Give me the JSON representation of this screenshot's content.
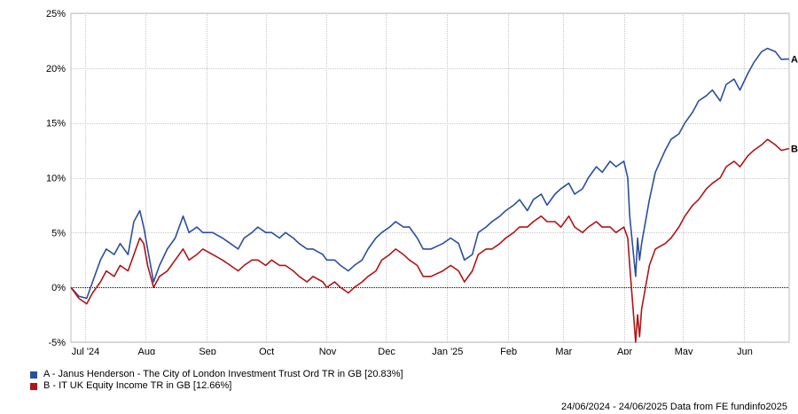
{
  "chart_data": {
    "type": "line",
    "x_range": [
      "2024-06-24",
      "2025-06-24"
    ],
    "ylim": [
      -5,
      25
    ],
    "y_ticks": [
      -5,
      0,
      5,
      10,
      15,
      20,
      25
    ],
    "y_tick_labels": [
      "-5%",
      "0%",
      "5%",
      "10%",
      "15%",
      "20%",
      "25%"
    ],
    "x_tick_labels": [
      {
        "date": "2024-07-01",
        "label": "Jul '24"
      },
      {
        "date": "2024-08-01",
        "label": "Aug"
      },
      {
        "date": "2024-09-01",
        "label": "Sep"
      },
      {
        "date": "2024-10-01",
        "label": "Oct"
      },
      {
        "date": "2024-11-01",
        "label": "Nov"
      },
      {
        "date": "2024-12-01",
        "label": "Dec"
      },
      {
        "date": "2025-01-01",
        "label": "Jan '25"
      },
      {
        "date": "2025-02-01",
        "label": "Feb"
      },
      {
        "date": "2025-03-01",
        "label": "Mar"
      },
      {
        "date": "2025-04-01",
        "label": "Apr"
      },
      {
        "date": "2025-05-01",
        "label": "May"
      },
      {
        "date": "2025-06-01",
        "label": "Jun"
      }
    ],
    "grid": true,
    "legend_position": "bottom-left",
    "series": [
      {
        "id": "A",
        "end_label": "A",
        "name": "A - Janus Henderson - The City of London Investment Trust Ord TR in GB [20.83%]",
        "color": "#2b4f9e",
        "points": [
          [
            "2024-06-24",
            0.0
          ],
          [
            "2024-06-28",
            -0.8
          ],
          [
            "2024-07-02",
            -1.0
          ],
          [
            "2024-07-05",
            0.5
          ],
          [
            "2024-07-09",
            2.5
          ],
          [
            "2024-07-12",
            3.5
          ],
          [
            "2024-07-16",
            3.0
          ],
          [
            "2024-07-19",
            4.0
          ],
          [
            "2024-07-23",
            3.0
          ],
          [
            "2024-07-26",
            6.0
          ],
          [
            "2024-07-29",
            7.0
          ],
          [
            "2024-07-31",
            5.5
          ],
          [
            "2024-08-02",
            3.5
          ],
          [
            "2024-08-05",
            0.5
          ],
          [
            "2024-08-08",
            2.0
          ],
          [
            "2024-08-12",
            3.5
          ],
          [
            "2024-08-16",
            4.5
          ],
          [
            "2024-08-20",
            6.5
          ],
          [
            "2024-08-23",
            5.0
          ],
          [
            "2024-08-27",
            5.5
          ],
          [
            "2024-08-30",
            5.0
          ],
          [
            "2024-09-04",
            5.0
          ],
          [
            "2024-09-09",
            4.5
          ],
          [
            "2024-09-13",
            4.0
          ],
          [
            "2024-09-17",
            3.5
          ],
          [
            "2024-09-20",
            4.5
          ],
          [
            "2024-09-24",
            5.0
          ],
          [
            "2024-09-27",
            5.5
          ],
          [
            "2024-10-01",
            5.0
          ],
          [
            "2024-10-04",
            5.0
          ],
          [
            "2024-10-08",
            4.5
          ],
          [
            "2024-10-11",
            5.0
          ],
          [
            "2024-10-15",
            4.5
          ],
          [
            "2024-10-18",
            4.0
          ],
          [
            "2024-10-22",
            3.5
          ],
          [
            "2024-10-25",
            3.5
          ],
          [
            "2024-10-30",
            3.0
          ],
          [
            "2024-11-01",
            2.5
          ],
          [
            "2024-11-05",
            2.5
          ],
          [
            "2024-11-08",
            2.0
          ],
          [
            "2024-11-12",
            1.5
          ],
          [
            "2024-11-15",
            2.0
          ],
          [
            "2024-11-19",
            2.5
          ],
          [
            "2024-11-22",
            3.5
          ],
          [
            "2024-11-26",
            4.5
          ],
          [
            "2024-11-29",
            5.0
          ],
          [
            "2024-12-03",
            5.5
          ],
          [
            "2024-12-06",
            6.0
          ],
          [
            "2024-12-10",
            5.5
          ],
          [
            "2024-12-13",
            5.5
          ],
          [
            "2024-12-17",
            4.5
          ],
          [
            "2024-12-20",
            3.5
          ],
          [
            "2024-12-24",
            3.5
          ],
          [
            "2024-12-30",
            4.0
          ],
          [
            "2025-01-03",
            4.5
          ],
          [
            "2025-01-07",
            4.0
          ],
          [
            "2025-01-10",
            2.5
          ],
          [
            "2025-01-14",
            3.0
          ],
          [
            "2025-01-17",
            5.0
          ],
          [
            "2025-01-21",
            5.5
          ],
          [
            "2025-01-24",
            6.0
          ],
          [
            "2025-01-28",
            6.5
          ],
          [
            "2025-01-31",
            7.0
          ],
          [
            "2025-02-04",
            7.5
          ],
          [
            "2025-02-07",
            8.0
          ],
          [
            "2025-02-11",
            7.0
          ],
          [
            "2025-02-14",
            8.0
          ],
          [
            "2025-02-18",
            8.5
          ],
          [
            "2025-02-21",
            7.5
          ],
          [
            "2025-02-25",
            8.5
          ],
          [
            "2025-02-28",
            9.0
          ],
          [
            "2025-03-04",
            9.5
          ],
          [
            "2025-03-07",
            8.5
          ],
          [
            "2025-03-11",
            9.0
          ],
          [
            "2025-03-14",
            10.0
          ],
          [
            "2025-03-18",
            11.0
          ],
          [
            "2025-03-21",
            10.5
          ],
          [
            "2025-03-25",
            11.5
          ],
          [
            "2025-03-28",
            11.0
          ],
          [
            "2025-04-01",
            11.5
          ],
          [
            "2025-04-03",
            10.0
          ],
          [
            "2025-04-04",
            6.5
          ],
          [
            "2025-04-07",
            1.0
          ],
          [
            "2025-04-08",
            4.5
          ],
          [
            "2025-04-09",
            2.5
          ],
          [
            "2025-04-10",
            4.0
          ],
          [
            "2025-04-14",
            8.0
          ],
          [
            "2025-04-17",
            10.5
          ],
          [
            "2025-04-22",
            12.5
          ],
          [
            "2025-04-25",
            13.5
          ],
          [
            "2025-04-29",
            14.0
          ],
          [
            "2025-05-02",
            15.0
          ],
          [
            "2025-05-06",
            16.0
          ],
          [
            "2025-05-09",
            17.0
          ],
          [
            "2025-05-13",
            17.5
          ],
          [
            "2025-05-16",
            18.0
          ],
          [
            "2025-05-20",
            17.0
          ],
          [
            "2025-05-23",
            18.5
          ],
          [
            "2025-05-27",
            19.0
          ],
          [
            "2025-05-30",
            18.0
          ],
          [
            "2025-06-03",
            19.5
          ],
          [
            "2025-06-06",
            20.5
          ],
          [
            "2025-06-10",
            21.5
          ],
          [
            "2025-06-13",
            21.8
          ],
          [
            "2025-06-17",
            21.5
          ],
          [
            "2025-06-20",
            20.8
          ],
          [
            "2025-06-24",
            20.83
          ]
        ]
      },
      {
        "id": "B",
        "end_label": "B",
        "name": "B - IT UK Equity Income TR in GB [12.66%]",
        "color": "#b01416",
        "points": [
          [
            "2024-06-24",
            0.0
          ],
          [
            "2024-06-28",
            -1.0
          ],
          [
            "2024-07-02",
            -1.5
          ],
          [
            "2024-07-05",
            -0.5
          ],
          [
            "2024-07-09",
            0.5
          ],
          [
            "2024-07-12",
            1.5
          ],
          [
            "2024-07-16",
            1.0
          ],
          [
            "2024-07-19",
            2.0
          ],
          [
            "2024-07-23",
            1.5
          ],
          [
            "2024-07-26",
            3.0
          ],
          [
            "2024-07-29",
            4.5
          ],
          [
            "2024-07-31",
            4.0
          ],
          [
            "2024-08-02",
            2.0
          ],
          [
            "2024-08-05",
            0.0
          ],
          [
            "2024-08-08",
            1.0
          ],
          [
            "2024-08-12",
            1.5
          ],
          [
            "2024-08-16",
            2.5
          ],
          [
            "2024-08-20",
            3.5
          ],
          [
            "2024-08-23",
            2.5
          ],
          [
            "2024-08-27",
            3.0
          ],
          [
            "2024-08-30",
            3.5
          ],
          [
            "2024-09-04",
            3.0
          ],
          [
            "2024-09-09",
            2.5
          ],
          [
            "2024-09-13",
            2.0
          ],
          [
            "2024-09-17",
            1.5
          ],
          [
            "2024-09-20",
            2.0
          ],
          [
            "2024-09-24",
            2.5
          ],
          [
            "2024-09-27",
            2.5
          ],
          [
            "2024-10-01",
            2.0
          ],
          [
            "2024-10-04",
            2.5
          ],
          [
            "2024-10-08",
            2.0
          ],
          [
            "2024-10-11",
            2.0
          ],
          [
            "2024-10-15",
            1.5
          ],
          [
            "2024-10-18",
            1.0
          ],
          [
            "2024-10-22",
            0.5
          ],
          [
            "2024-10-25",
            1.0
          ],
          [
            "2024-10-30",
            0.5
          ],
          [
            "2024-11-01",
            0.0
          ],
          [
            "2024-11-05",
            0.5
          ],
          [
            "2024-11-08",
            0.0
          ],
          [
            "2024-11-12",
            -0.5
          ],
          [
            "2024-11-15",
            0.0
          ],
          [
            "2024-11-19",
            0.5
          ],
          [
            "2024-11-22",
            1.0
          ],
          [
            "2024-11-26",
            1.5
          ],
          [
            "2024-11-29",
            2.5
          ],
          [
            "2024-12-03",
            3.0
          ],
          [
            "2024-12-06",
            3.5
          ],
          [
            "2024-12-10",
            3.0
          ],
          [
            "2024-12-13",
            2.5
          ],
          [
            "2024-12-17",
            2.0
          ],
          [
            "2024-12-20",
            1.0
          ],
          [
            "2024-12-24",
            1.0
          ],
          [
            "2024-12-30",
            1.5
          ],
          [
            "2025-01-03",
            2.0
          ],
          [
            "2025-01-07",
            1.5
          ],
          [
            "2025-01-10",
            0.5
          ],
          [
            "2025-01-14",
            1.5
          ],
          [
            "2025-01-17",
            3.0
          ],
          [
            "2025-01-21",
            3.5
          ],
          [
            "2025-01-24",
            3.5
          ],
          [
            "2025-01-28",
            4.0
          ],
          [
            "2025-01-31",
            4.5
          ],
          [
            "2025-02-04",
            5.0
          ],
          [
            "2025-02-07",
            5.5
          ],
          [
            "2025-02-11",
            5.5
          ],
          [
            "2025-02-14",
            6.0
          ],
          [
            "2025-02-18",
            6.5
          ],
          [
            "2025-02-21",
            6.0
          ],
          [
            "2025-02-25",
            6.0
          ],
          [
            "2025-02-28",
            5.5
          ],
          [
            "2025-03-04",
            6.5
          ],
          [
            "2025-03-07",
            5.5
          ],
          [
            "2025-03-11",
            5.0
          ],
          [
            "2025-03-14",
            5.5
          ],
          [
            "2025-03-18",
            6.0
          ],
          [
            "2025-03-21",
            5.5
          ],
          [
            "2025-03-25",
            5.5
          ],
          [
            "2025-03-28",
            5.0
          ],
          [
            "2025-04-01",
            5.5
          ],
          [
            "2025-04-03",
            4.5
          ],
          [
            "2025-04-04",
            2.0
          ],
          [
            "2025-04-07",
            -5.0
          ],
          [
            "2025-04-08",
            -2.5
          ],
          [
            "2025-04-09",
            -4.5
          ],
          [
            "2025-04-10",
            -2.0
          ],
          [
            "2025-04-14",
            2.0
          ],
          [
            "2025-04-17",
            3.5
          ],
          [
            "2025-04-22",
            4.0
          ],
          [
            "2025-04-25",
            4.5
          ],
          [
            "2025-04-29",
            5.5
          ],
          [
            "2025-05-02",
            6.5
          ],
          [
            "2025-05-06",
            7.5
          ],
          [
            "2025-05-09",
            8.0
          ],
          [
            "2025-05-13",
            9.0
          ],
          [
            "2025-05-16",
            9.5
          ],
          [
            "2025-05-20",
            10.0
          ],
          [
            "2025-05-23",
            11.0
          ],
          [
            "2025-05-27",
            11.5
          ],
          [
            "2025-05-30",
            11.0
          ],
          [
            "2025-06-03",
            12.0
          ],
          [
            "2025-06-06",
            12.5
          ],
          [
            "2025-06-10",
            13.0
          ],
          [
            "2025-06-13",
            13.5
          ],
          [
            "2025-06-17",
            13.0
          ],
          [
            "2025-06-20",
            12.5
          ],
          [
            "2025-06-24",
            12.66
          ]
        ]
      }
    ]
  },
  "legend": [
    {
      "label": "A - Janus Henderson - The City of London Investment Trust Ord TR in GB [20.83%]",
      "color": "#2b4f9e"
    },
    {
      "label": "B - IT UK Equity Income TR in GB [12.66%]",
      "color": "#b01416"
    }
  ],
  "footer": {
    "range": "24/06/2024 - 24/06/2025",
    "source": "Data from FE fundinfo2025"
  }
}
